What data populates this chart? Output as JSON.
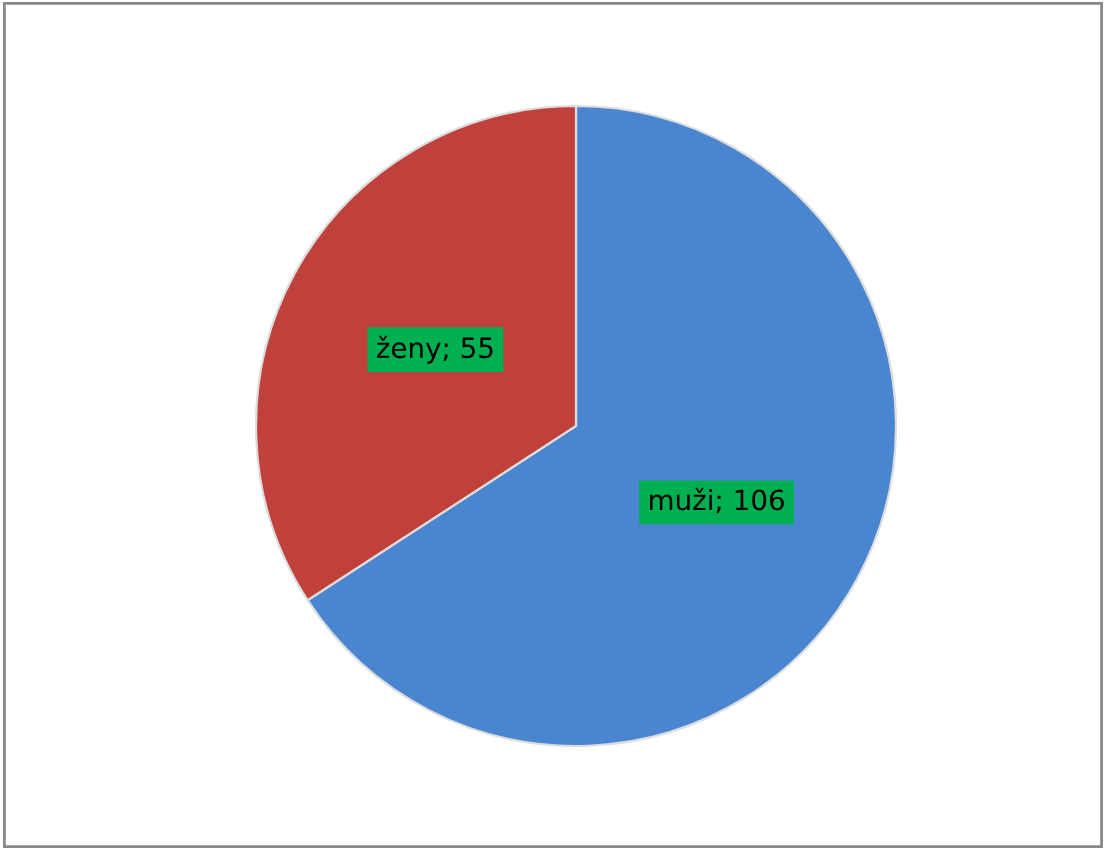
{
  "chart_data": {
    "type": "pie",
    "categories": [
      "muži",
      "ženy"
    ],
    "values": [
      106,
      55
    ],
    "colors": [
      "#4a86d0",
      "#c0403c"
    ],
    "value_labels": [
      "; 106",
      "; 55"
    ]
  }
}
